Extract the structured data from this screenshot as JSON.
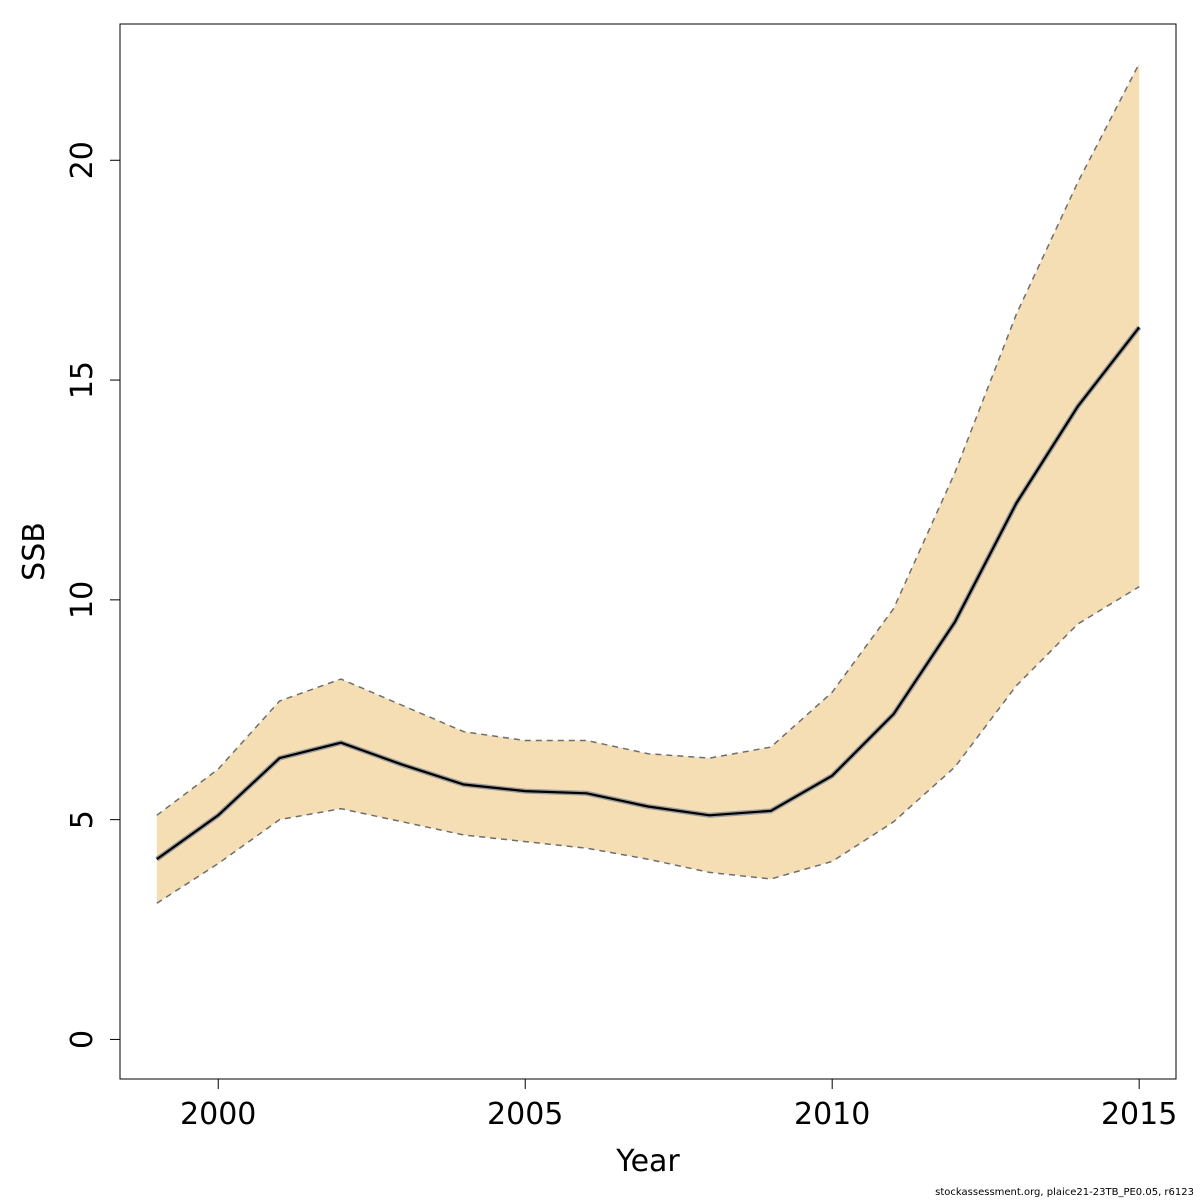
{
  "chart_data": {
    "type": "line",
    "xlabel": "Year",
    "ylabel": "SSB",
    "xlim": [
      1998.4,
      2015.6
    ],
    "ylim": [
      -0.9,
      23.1
    ],
    "x_ticks": [
      2000,
      2005,
      2010,
      2015
    ],
    "y_ticks": [
      0,
      5,
      10,
      15,
      20
    ],
    "grid": false,
    "x": [
      1999,
      2000,
      2001,
      2002,
      2003,
      2004,
      2005,
      2006,
      2007,
      2008,
      2009,
      2010,
      2011,
      2012,
      2013,
      2014,
      2015
    ],
    "series": [
      {
        "role": "estimate",
        "values": [
          4.1,
          5.1,
          6.4,
          6.75,
          6.25,
          5.8,
          5.65,
          5.6,
          5.3,
          5.1,
          5.2,
          6.0,
          7.4,
          9.5,
          12.2,
          14.4,
          16.2
        ]
      },
      {
        "role": "upper",
        "values": [
          5.1,
          6.15,
          7.7,
          8.2,
          7.6,
          7.0,
          6.8,
          6.8,
          6.5,
          6.4,
          6.65,
          7.9,
          9.8,
          12.9,
          16.5,
          19.5,
          22.2
        ]
      },
      {
        "role": "lower",
        "values": [
          3.1,
          4.0,
          5.0,
          5.25,
          4.95,
          4.65,
          4.5,
          4.35,
          4.1,
          3.8,
          3.65,
          4.05,
          4.95,
          6.2,
          8.05,
          9.45,
          10.3
        ]
      }
    ],
    "colors": {
      "band": "#F5DEB3",
      "line": "#000000",
      "bound": "#6e6e6e"
    }
  },
  "footer": "stockassessment.org, plaice21-23TB_PE0.05, r6123"
}
